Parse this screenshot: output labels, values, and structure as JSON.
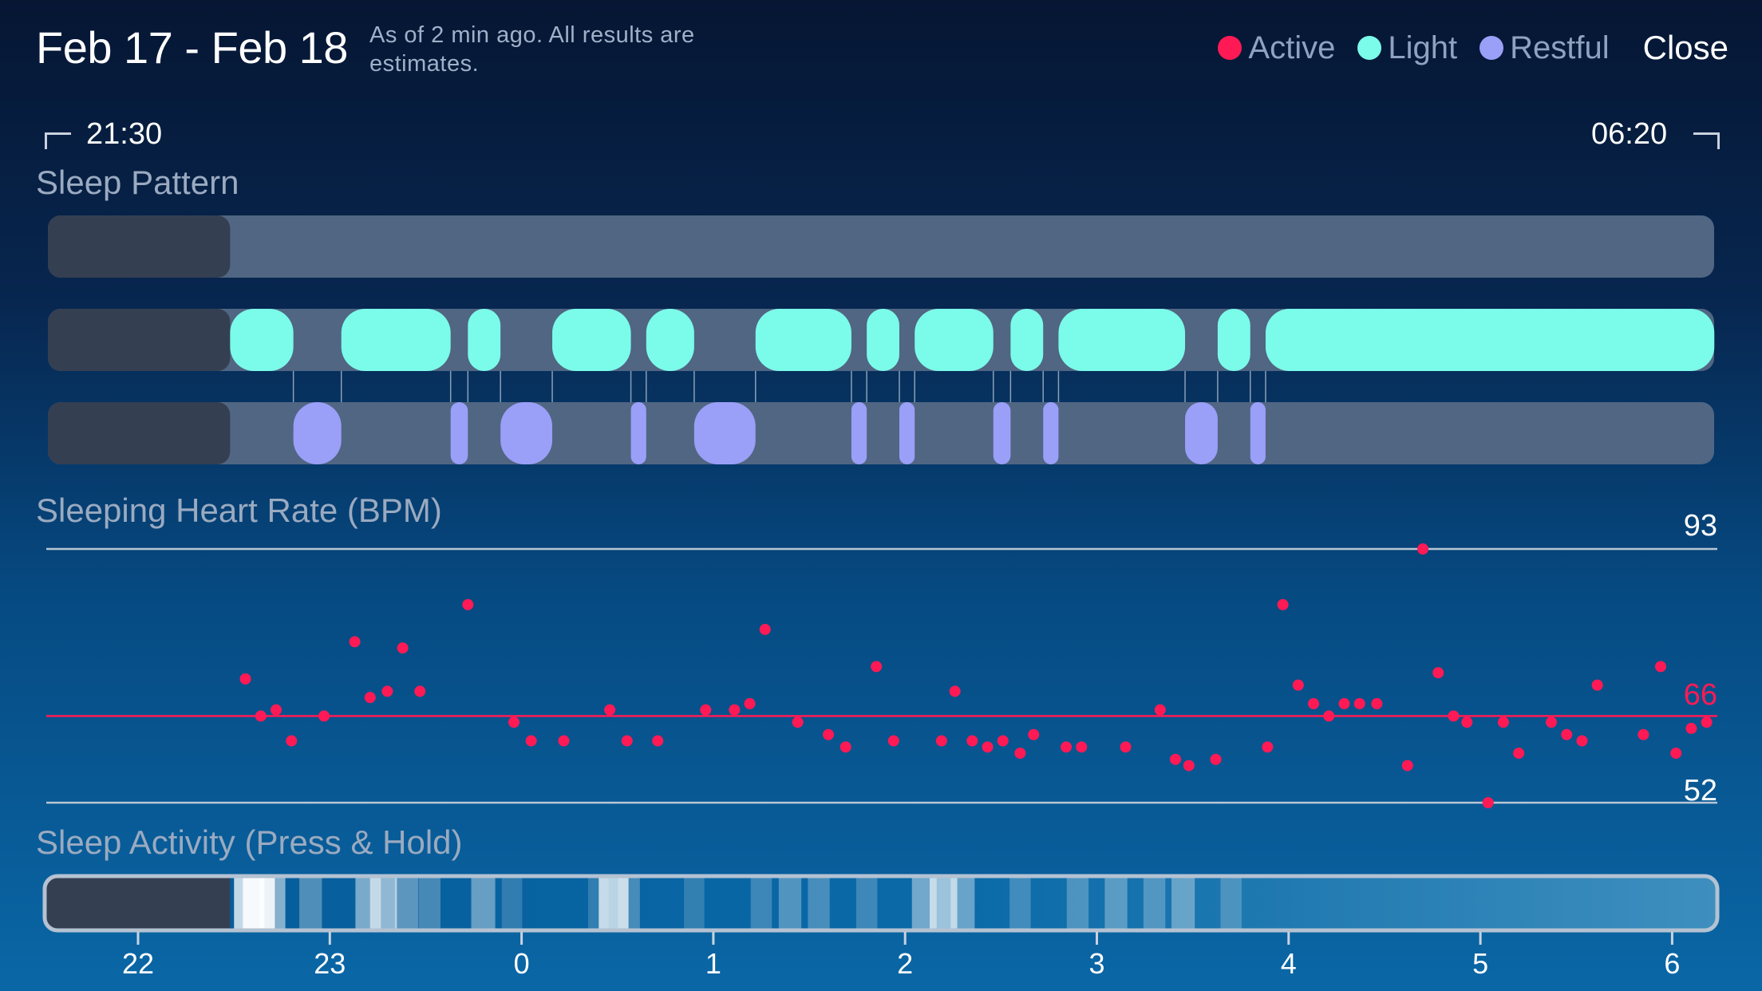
{
  "header": {
    "title": "Feb 17 - Feb 18",
    "subtitle": "As of 2 min ago. All results are estimates.",
    "legend": [
      {
        "label": "Active",
        "color": "#ff1a55"
      },
      {
        "label": "Light",
        "color": "#7bfbe9"
      },
      {
        "label": "Restful",
        "color": "#9a9ff7"
      }
    ],
    "close_label": "Close"
  },
  "sleep_window": {
    "start": "21:30",
    "end": "06:20"
  },
  "sections": {
    "pattern": "Sleep Pattern",
    "heart_rate": "Sleeping Heart Rate (BPM)",
    "activity": "Sleep Activity (Press & Hold)"
  },
  "heart_rate_labels": {
    "max": "93",
    "avg": "66",
    "min": "52"
  },
  "chart_data": {
    "type": "scatter",
    "title": "Sleeping Heart Rate (BPM)",
    "xlabel": "",
    "ylabel": "",
    "x_unit": "hour of night",
    "x_ticks": [
      "22",
      "23",
      "0",
      "1",
      "2",
      "3",
      "4",
      "5",
      "6"
    ],
    "reference_lines": {
      "max": 93,
      "average": 66,
      "min": 52
    },
    "ylim": [
      52,
      93
    ],
    "series": [
      {
        "color": "#ff1a55",
        "points": [
          [
            22.56,
            72
          ],
          [
            22.64,
            66
          ],
          [
            22.72,
            67
          ],
          [
            22.8,
            62
          ],
          [
            22.97,
            66
          ],
          [
            23.13,
            78
          ],
          [
            23.21,
            69
          ],
          [
            23.3,
            70
          ],
          [
            23.38,
            77
          ],
          [
            23.47,
            70
          ],
          [
            23.72,
            84
          ],
          [
            23.96,
            65
          ],
          [
            24.05,
            62
          ],
          [
            24.22,
            62
          ],
          [
            24.46,
            67
          ],
          [
            24.55,
            62
          ],
          [
            24.71,
            62
          ],
          [
            24.96,
            67
          ],
          [
            25.11,
            67
          ],
          [
            25.19,
            68
          ],
          [
            25.27,
            80
          ],
          [
            25.44,
            65
          ],
          [
            25.6,
            63
          ],
          [
            25.69,
            61
          ],
          [
            25.85,
            74
          ],
          [
            25.94,
            62
          ],
          [
            26.19,
            62
          ],
          [
            26.26,
            70
          ],
          [
            26.35,
            62
          ],
          [
            26.43,
            61
          ],
          [
            26.51,
            62
          ],
          [
            26.6,
            60
          ],
          [
            26.67,
            63
          ],
          [
            26.84,
            61
          ],
          [
            26.92,
            61
          ],
          [
            27.15,
            61
          ],
          [
            27.33,
            67
          ],
          [
            27.41,
            59
          ],
          [
            27.48,
            58
          ],
          [
            27.62,
            59
          ],
          [
            27.89,
            61
          ],
          [
            27.97,
            84
          ],
          [
            28.05,
            71
          ],
          [
            28.13,
            68
          ],
          [
            28.21,
            66
          ],
          [
            28.29,
            68
          ],
          [
            28.37,
            68
          ],
          [
            28.46,
            68
          ],
          [
            28.62,
            58
          ],
          [
            28.7,
            93
          ],
          [
            28.78,
            73
          ],
          [
            28.86,
            66
          ],
          [
            28.93,
            65
          ],
          [
            29.04,
            52
          ],
          [
            29.12,
            65
          ],
          [
            29.2,
            60
          ],
          [
            29.37,
            65
          ],
          [
            29.45,
            63
          ],
          [
            29.53,
            62
          ],
          [
            29.61,
            71
          ],
          [
            29.85,
            63
          ],
          [
            29.94,
            74
          ],
          [
            30.02,
            60
          ],
          [
            30.1,
            64
          ],
          [
            30.18,
            65
          ]
        ]
      }
    ]
  },
  "pattern_segments": {
    "light": [
      [
        22.48,
        22.81
      ],
      [
        23.06,
        23.63
      ],
      [
        23.72,
        23.89
      ],
      [
        24.16,
        24.57
      ],
      [
        24.65,
        24.9
      ],
      [
        25.22,
        25.72
      ],
      [
        25.8,
        25.97
      ],
      [
        26.05,
        26.46
      ],
      [
        26.55,
        26.72
      ],
      [
        26.8,
        27.46
      ],
      [
        27.63,
        27.8
      ],
      [
        27.88,
        30.22
      ]
    ],
    "restful": [
      [
        22.81,
        23.06
      ],
      [
        23.63,
        23.72
      ],
      [
        23.89,
        24.16
      ],
      [
        24.57,
        24.65
      ],
      [
        24.9,
        25.22
      ],
      [
        25.72,
        25.8
      ],
      [
        25.97,
        26.05
      ],
      [
        26.46,
        26.55
      ],
      [
        26.72,
        26.8
      ],
      [
        27.46,
        27.63
      ],
      [
        27.8,
        27.88
      ]
    ]
  },
  "activity_stripes": [
    [
      22.58,
      0.9
    ],
    [
      22.63,
      1.0
    ],
    [
      22.7,
      0.6
    ],
    [
      22.9,
      0.35
    ],
    [
      23.2,
      0.55
    ],
    [
      23.28,
      0.65
    ],
    [
      23.4,
      0.4
    ],
    [
      23.52,
      0.3
    ],
    [
      23.8,
      0.45
    ],
    [
      23.95,
      0.2
    ],
    [
      24.4,
      0.2
    ],
    [
      24.48,
      0.85
    ],
    [
      24.56,
      0.3
    ],
    [
      24.9,
      0.2
    ],
    [
      25.25,
      0.25
    ],
    [
      25.4,
      0.35
    ],
    [
      25.55,
      0.3
    ],
    [
      25.8,
      0.25
    ],
    [
      26.1,
      0.5
    ],
    [
      26.2,
      0.7
    ],
    [
      26.3,
      0.45
    ],
    [
      26.6,
      0.25
    ],
    [
      26.9,
      0.3
    ],
    [
      27.1,
      0.35
    ],
    [
      27.3,
      0.3
    ],
    [
      27.45,
      0.4
    ],
    [
      27.7,
      0.25
    ]
  ]
}
